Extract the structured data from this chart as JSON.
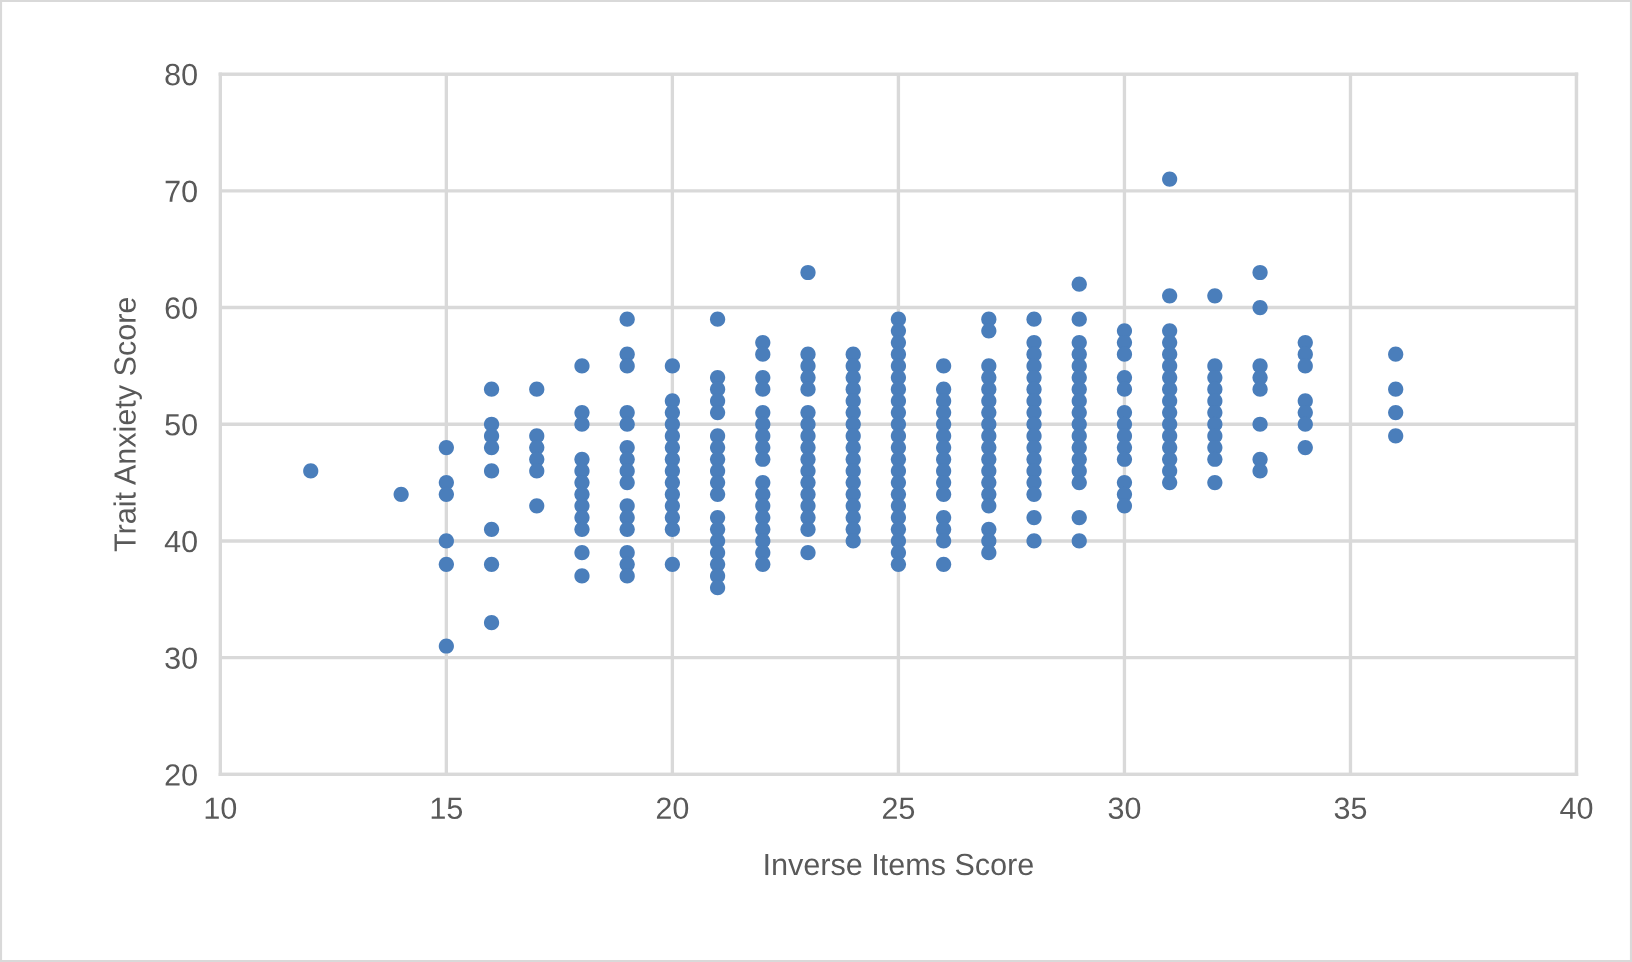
{
  "chart_data": {
    "type": "scatter",
    "xlabel": "Inverse Items Score",
    "ylabel": "Trait Anxiety Score",
    "xlim": [
      10,
      40
    ],
    "xticks": [
      10,
      15,
      20,
      25,
      30,
      35,
      40
    ],
    "ylim": [
      20,
      80
    ],
    "yticks": [
      20,
      30,
      40,
      50,
      60,
      70,
      80
    ],
    "grid": true,
    "marker": "circle",
    "series": [
      {
        "color": "#4a7ebb",
        "x": [
          12
        ],
        "values": [
          46
        ]
      },
      {
        "color": "#4a7ebb",
        "x": [
          14
        ],
        "values": [
          44
        ]
      },
      {
        "color": "#4a7ebb",
        "x": [
          15,
          15,
          15,
          15,
          15,
          15
        ],
        "values": [
          48,
          45,
          44,
          40,
          38,
          31
        ]
      },
      {
        "color": "#4a7ebb",
        "x": [
          16,
          16,
          16,
          16,
          16,
          16,
          16,
          16
        ],
        "values": [
          53,
          50,
          49,
          48,
          46,
          41,
          38,
          33
        ]
      },
      {
        "color": "#4a7ebb",
        "x": [
          17,
          17,
          17,
          17,
          17,
          17
        ],
        "values": [
          53,
          49,
          48,
          47,
          46,
          43
        ]
      },
      {
        "color": "#4a7ebb",
        "x": [
          18,
          18,
          18,
          18,
          18,
          18,
          18,
          18,
          18,
          18,
          18,
          18
        ],
        "values": [
          55,
          51,
          50,
          47,
          46,
          45,
          44,
          43,
          42,
          41,
          39,
          37
        ]
      },
      {
        "color": "#4a7ebb",
        "x": [
          19,
          19,
          19,
          19,
          19,
          19,
          19,
          19,
          19,
          19,
          19,
          19,
          19,
          19,
          19
        ],
        "values": [
          59,
          56,
          55,
          51,
          50,
          48,
          47,
          46,
          45,
          43,
          42,
          41,
          39,
          38,
          37
        ]
      },
      {
        "color": "#4a7ebb",
        "x": [
          20,
          20,
          20,
          20,
          20,
          20,
          20,
          20,
          20,
          20,
          20,
          20,
          20,
          20
        ],
        "values": [
          55,
          52,
          51,
          50,
          49,
          48,
          47,
          46,
          45,
          44,
          43,
          42,
          41,
          38
        ]
      },
      {
        "color": "#4a7ebb",
        "x": [
          21,
          21,
          21,
          21,
          21,
          21,
          21,
          21,
          21,
          21,
          21,
          21,
          21,
          21,
          21,
          21,
          21,
          21
        ],
        "values": [
          59,
          54,
          53,
          52,
          51,
          49,
          48,
          47,
          46,
          45,
          44,
          42,
          41,
          40,
          39,
          38,
          37,
          36
        ]
      },
      {
        "color": "#4a7ebb",
        "x": [
          22,
          22,
          22,
          22,
          22,
          22,
          22,
          22,
          22,
          22,
          22,
          22,
          22,
          22,
          22,
          22,
          22
        ],
        "values": [
          57,
          56,
          54,
          53,
          51,
          50,
          49,
          48,
          47,
          45,
          44,
          43,
          42,
          41,
          40,
          39,
          38
        ]
      },
      {
        "color": "#4a7ebb",
        "x": [
          23,
          23,
          23,
          23,
          23,
          23,
          23,
          23,
          23,
          23,
          23,
          23,
          23,
          23,
          23,
          23,
          23
        ],
        "values": [
          63,
          56,
          55,
          54,
          53,
          51,
          50,
          49,
          48,
          47,
          46,
          45,
          44,
          43,
          42,
          41,
          39
        ]
      },
      {
        "color": "#4a7ebb",
        "x": [
          24,
          24,
          24,
          24,
          24,
          24,
          24,
          24,
          24,
          24,
          24,
          24,
          24,
          24,
          24,
          24,
          24
        ],
        "values": [
          56,
          55,
          54,
          53,
          52,
          51,
          50,
          49,
          48,
          47,
          46,
          45,
          44,
          43,
          42,
          41,
          40
        ]
      },
      {
        "color": "#4a7ebb",
        "x": [
          25,
          25,
          25,
          25,
          25,
          25,
          25,
          25,
          25,
          25,
          25,
          25,
          25,
          25,
          25,
          25,
          25,
          25,
          25,
          25,
          25,
          25
        ],
        "values": [
          59,
          58,
          57,
          56,
          55,
          54,
          53,
          52,
          51,
          50,
          49,
          48,
          47,
          46,
          45,
          44,
          43,
          42,
          41,
          40,
          39,
          38
        ]
      },
      {
        "color": "#4a7ebb",
        "x": [
          26,
          26,
          26,
          26,
          26,
          26,
          26,
          26,
          26,
          26,
          26,
          26,
          26,
          26,
          26
        ],
        "values": [
          55,
          53,
          52,
          51,
          50,
          49,
          48,
          47,
          46,
          45,
          44,
          42,
          41,
          40,
          38
        ]
      },
      {
        "color": "#4a7ebb",
        "x": [
          27,
          27,
          27,
          27,
          27,
          27,
          27,
          27,
          27,
          27,
          27,
          27,
          27,
          27,
          27,
          27,
          27,
          27
        ],
        "values": [
          59,
          58,
          55,
          54,
          53,
          52,
          51,
          50,
          49,
          48,
          47,
          46,
          45,
          44,
          43,
          41,
          40,
          39
        ]
      },
      {
        "color": "#4a7ebb",
        "x": [
          28,
          28,
          28,
          28,
          28,
          28,
          28,
          28,
          28,
          28,
          28,
          28,
          28,
          28,
          28,
          28,
          28
        ],
        "values": [
          59,
          57,
          56,
          55,
          54,
          53,
          52,
          51,
          50,
          49,
          48,
          47,
          46,
          45,
          44,
          42,
          40
        ]
      },
      {
        "color": "#4a7ebb",
        "x": [
          29,
          29,
          29,
          29,
          29,
          29,
          29,
          29,
          29,
          29,
          29,
          29,
          29,
          29,
          29,
          29,
          29
        ],
        "values": [
          62,
          59,
          57,
          56,
          55,
          54,
          53,
          52,
          51,
          50,
          49,
          48,
          47,
          46,
          45,
          42,
          40
        ]
      },
      {
        "color": "#4a7ebb",
        "x": [
          30,
          30,
          30,
          30,
          30,
          30,
          30,
          30,
          30,
          30,
          30,
          30,
          30
        ],
        "values": [
          58,
          57,
          56,
          54,
          53,
          51,
          50,
          49,
          48,
          47,
          45,
          44,
          43
        ]
      },
      {
        "color": "#4a7ebb",
        "x": [
          31,
          31,
          31,
          31,
          31,
          31,
          31,
          31,
          31,
          31,
          31,
          31,
          31,
          31,
          31,
          31
        ],
        "values": [
          71,
          61,
          58,
          57,
          56,
          55,
          54,
          53,
          52,
          51,
          50,
          49,
          48,
          47,
          46,
          45
        ]
      },
      {
        "color": "#4a7ebb",
        "x": [
          32,
          32,
          32,
          32,
          32,
          32,
          32,
          32,
          32,
          32,
          32
        ],
        "values": [
          61,
          55,
          54,
          53,
          52,
          51,
          50,
          49,
          48,
          47,
          45
        ]
      },
      {
        "color": "#4a7ebb",
        "x": [
          33,
          33,
          33,
          33,
          33,
          33,
          33,
          33
        ],
        "values": [
          63,
          60,
          55,
          54,
          53,
          50,
          47,
          46
        ]
      },
      {
        "color": "#4a7ebb",
        "x": [
          34,
          34,
          34,
          34,
          34,
          34,
          34
        ],
        "values": [
          57,
          56,
          55,
          52,
          51,
          50,
          48
        ]
      },
      {
        "color": "#4a7ebb",
        "x": [
          36,
          36,
          36,
          36
        ],
        "values": [
          56,
          53,
          51,
          49
        ]
      }
    ]
  }
}
